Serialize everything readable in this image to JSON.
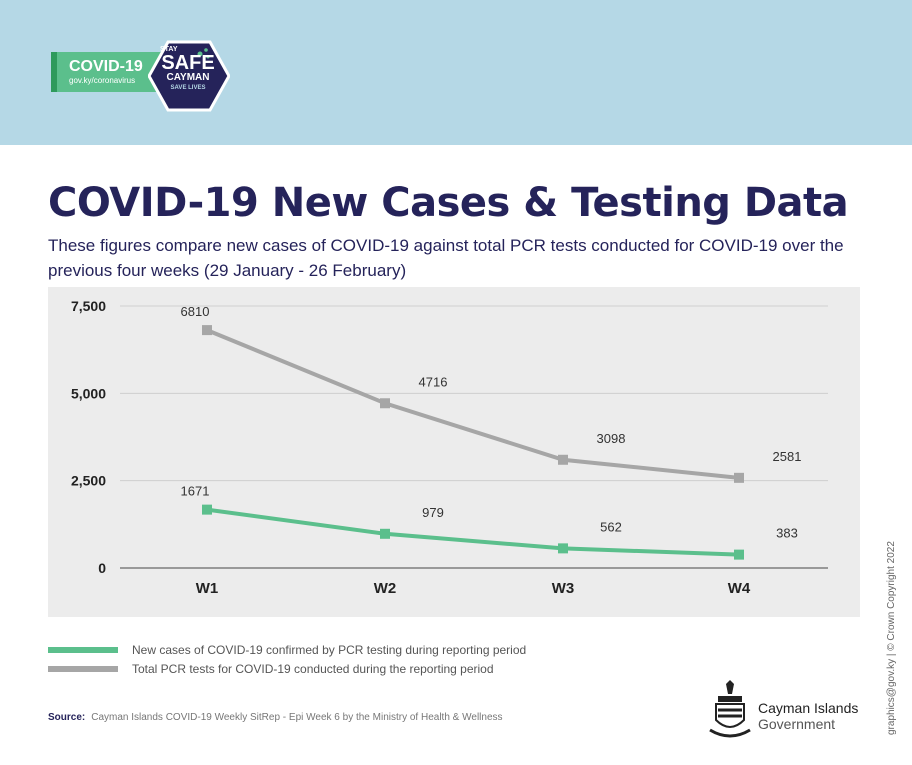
{
  "header": {
    "covid_tag": "COVID-19",
    "covid_url": "gov.ky/coronavirus",
    "badge": [
      "STAY",
      "SAFE",
      "CAYMAN",
      "SAVE LIVES"
    ]
  },
  "title": "COVID-19 New Cases & Testing Data",
  "subtitle": "These figures compare new cases of COVID-19 against total PCR tests conducted for COVID-19 over the previous four weeks (29 January - 26 February)",
  "chart_data": {
    "type": "line",
    "categories": [
      "W1",
      "W2",
      "W3",
      "W4"
    ],
    "ylim": [
      0,
      7500
    ],
    "yticks": [
      "0",
      "2,500",
      "5,000",
      "7,500"
    ],
    "ytick_values": [
      0,
      2500,
      5000,
      7500
    ],
    "grid": true,
    "legend_position": "bottom-left",
    "series": [
      {
        "name": "Total PCR tests for COVID-19 conducted during the reporting period",
        "values": [
          6810,
          4716,
          3098,
          2581
        ],
        "color": "#a6a6a6"
      },
      {
        "name": "New cases  of COVID-19 confirmed by PCR testing  during reporting period",
        "values": [
          1671,
          979,
          562,
          383
        ],
        "color": "#5bbf8c"
      }
    ]
  },
  "source_label": "Source:",
  "source_text": "Cayman Islands COVID-19 Weekly SitRep - Epi Week 6 by the Ministry of Health & Wellness",
  "gov_name": "Cayman Islands",
  "gov_sub": "Government",
  "credit": "graphics@gov.ky | © Crown Copyright 2022"
}
